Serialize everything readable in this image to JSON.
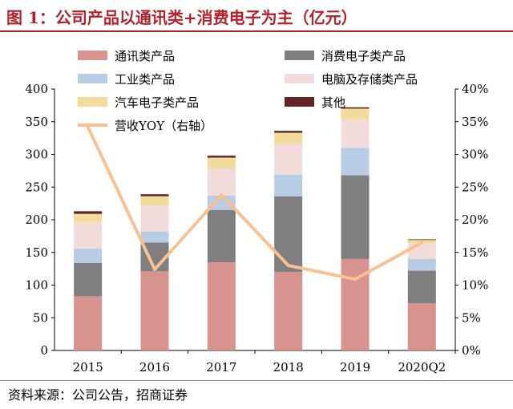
{
  "header": {
    "title": "图 1：公司产品以通讯类+消费电子为主（亿元）"
  },
  "footer": {
    "source": "资料来源：公司公告，招商证券"
  },
  "chart_data": {
    "type": "bar",
    "stacked": true,
    "categories": [
      "2015",
      "2016",
      "2017",
      "2018",
      "2019",
      "2020Q2"
    ],
    "ylim": [
      0,
      400
    ],
    "yticks": [
      0,
      50,
      100,
      150,
      200,
      250,
      300,
      350,
      400
    ],
    "y2lim": [
      0,
      40
    ],
    "y2ticks": [
      "0%",
      "5%",
      "10%",
      "15%",
      "20%",
      "25%",
      "30%",
      "35%",
      "40%"
    ],
    "grid": false,
    "legend_position": "top",
    "series": [
      {
        "name": "通讯类产品",
        "color": "#d9938f",
        "values": [
          83,
          121,
          135,
          120,
          140,
          72
        ]
      },
      {
        "name": "消费电子类产品",
        "color": "#7f7f7f",
        "values": [
          51,
          44,
          80,
          116,
          128,
          50
        ]
      },
      {
        "name": "工业类产品",
        "color": "#b8cce4",
        "values": [
          22,
          17,
          22,
          33,
          42,
          18
        ]
      },
      {
        "name": "电脑及存储类产品",
        "color": "#f2dcdb",
        "values": [
          40,
          40,
          41,
          47,
          43,
          24
        ]
      },
      {
        "name": "汽车电子类产品",
        "color": "#f1dc9b",
        "values": [
          13,
          14,
          17,
          17,
          17,
          5
        ]
      },
      {
        "name": "其他",
        "color": "#632523",
        "values": [
          4,
          3,
          3,
          3,
          2,
          1
        ]
      }
    ],
    "line_series": {
      "name": "营收YOY（右轴）",
      "color": "#fac090",
      "axis": "right",
      "values": [
        34.2,
        12.4,
        23.8,
        13.0,
        10.9,
        16.5
      ]
    }
  }
}
